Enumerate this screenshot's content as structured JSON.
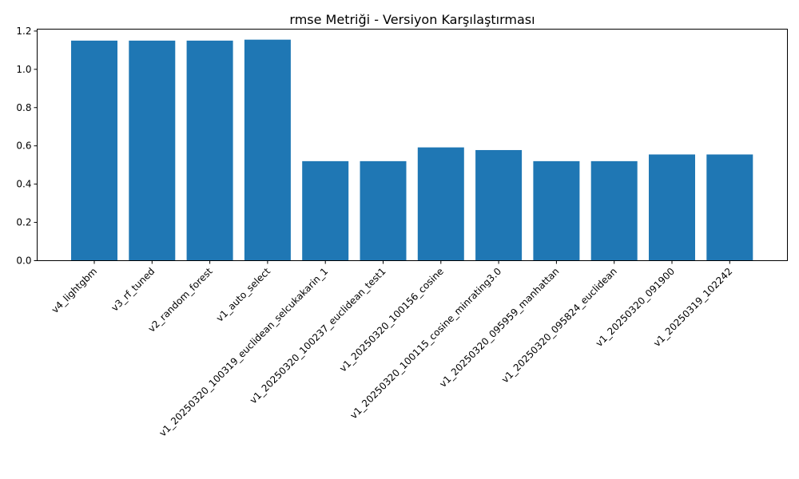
{
  "chart_data": {
    "type": "bar",
    "title": "rmse Metriği - Versiyon Karşılaştırması",
    "xlabel": "",
    "ylabel": "",
    "categories": [
      "v4_lightgbm",
      "v3_rf_tuned",
      "v2_random_forest",
      "v1_auto_select",
      "v1_20250320_100319_euclidean_selcukakarin_1",
      "v1_20250320_100237_euclidean_test1",
      "v1_20250320_100156_cosine",
      "v1_20250320_100115_cosine_minrating3.0",
      "v1_20250320_095959_manhattan",
      "v1_20250320_095824_euclidean",
      "v1_20250320_091900",
      "v1_20250319_102242"
    ],
    "values": [
      1.15,
      1.15,
      1.15,
      1.155,
      0.52,
      0.52,
      0.592,
      0.578,
      0.52,
      0.52,
      0.555,
      0.555
    ],
    "ylim": [
      0,
      1.21
    ],
    "yticks": [
      "0.0",
      "0.2",
      "0.4",
      "0.6",
      "0.8",
      "1.0",
      "1.2"
    ],
    "grid": false,
    "legend": "none",
    "bar_color": "#1f77b4"
  }
}
